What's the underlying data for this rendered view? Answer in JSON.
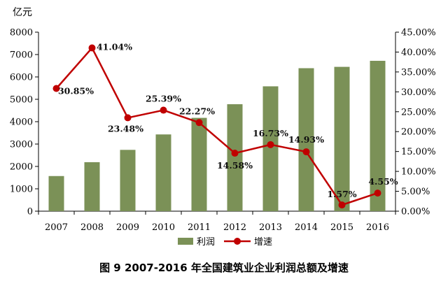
{
  "chart_data": {
    "type": "bar",
    "unit_label": "亿元",
    "categories": [
      "2007",
      "2008",
      "2009",
      "2010",
      "2011",
      "2012",
      "2013",
      "2014",
      "2015",
      "2016"
    ],
    "series": [
      {
        "name": "利润",
        "type": "bar",
        "axis": "left",
        "values": [
          1570,
          2190,
          2740,
          3430,
          4170,
          4780,
          5580,
          6390,
          6450,
          6720
        ]
      },
      {
        "name": "增速",
        "type": "line",
        "axis": "right",
        "values": [
          30.85,
          41.04,
          23.48,
          25.39,
          22.27,
          14.58,
          16.73,
          14.93,
          1.57,
          4.55
        ],
        "labels": [
          "30.85%",
          "41.04%",
          "23.48%",
          "25.39%",
          "22.27%",
          "14.58%",
          "16.73%",
          "14.93%",
          "1.57%",
          "4.55%"
        ]
      }
    ],
    "left_axis": {
      "min": 0,
      "max": 8000,
      "ticks": [
        "0",
        "1000",
        "2000",
        "3000",
        "4000",
        "5000",
        "6000",
        "7000",
        "8000"
      ]
    },
    "right_axis": {
      "min": 0,
      "max": 45,
      "ticks": [
        "0.00%",
        "5.00%",
        "10.00%",
        "15.00%",
        "20.00%",
        "25.00%",
        "30.00%",
        "35.00%",
        "40.00%",
        "45.00%"
      ]
    },
    "legend": [
      "利润",
      "增速"
    ],
    "legend_position": "bottom",
    "grid": false,
    "colors": {
      "bar": "#7b9157",
      "line": "#c00000"
    }
  },
  "caption": "图 9   2007-2016 年全国建筑业企业利润总额及增速"
}
